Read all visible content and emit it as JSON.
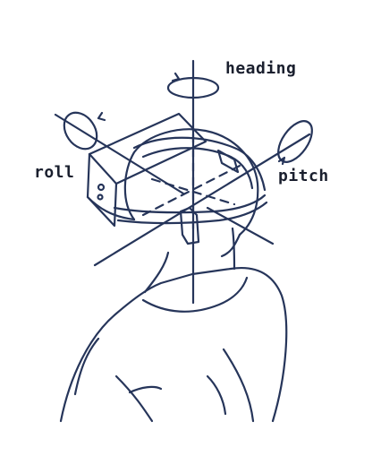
{
  "diagram": {
    "labels": {
      "heading": "heading",
      "roll": "roll",
      "pitch": "pitch"
    },
    "colors": {
      "ink": "#26355a",
      "label": "#1a1f2e",
      "background": "#ffffff"
    },
    "subject": "vr-headset-wearer-icon"
  }
}
